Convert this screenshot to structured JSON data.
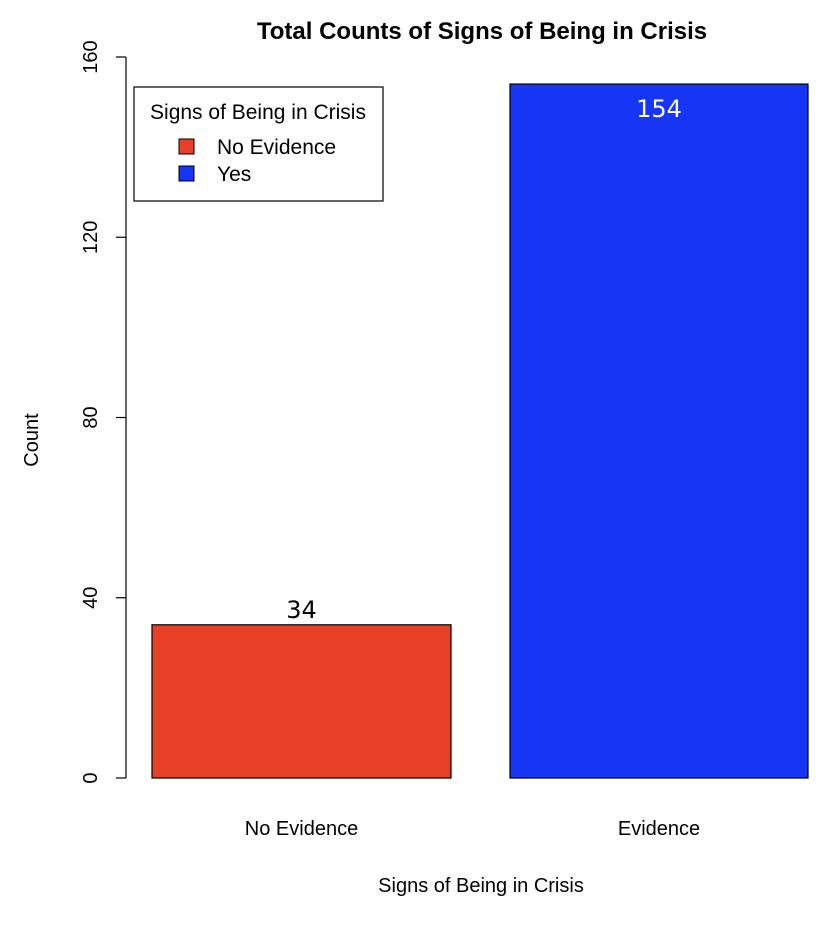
{
  "chart_data": {
    "type": "bar",
    "title": "Total Counts of Signs of Being in Crisis",
    "xlabel": "Signs of Being in Crisis",
    "ylabel": "Count",
    "categories": [
      "No Evidence",
      "Evidence"
    ],
    "values": [
      34,
      154
    ],
    "data_labels": [
      "34",
      "154"
    ],
    "ylim": [
      0,
      160
    ],
    "yticks": [
      0,
      40,
      80,
      120,
      160
    ],
    "grid": false,
    "colors": [
      "#e84127",
      "#1735f5"
    ],
    "legend": {
      "title": "Signs of Being in Crisis",
      "placement": "top-left",
      "items": [
        {
          "label": "No Evidence",
          "color": "#e84127"
        },
        {
          "label": "Yes",
          "color": "#1735f5"
        }
      ]
    }
  }
}
